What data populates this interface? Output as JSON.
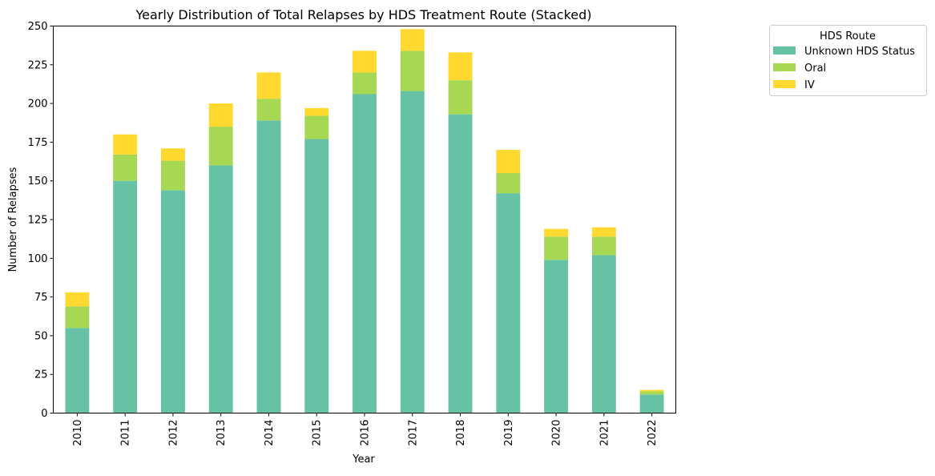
{
  "chart_data": {
    "type": "bar",
    "stacked": true,
    "title": "Yearly Distribution of Total Relapses by HDS Treatment Route (Stacked)",
    "xlabel": "Year",
    "ylabel": "Number of Relapses",
    "ylim": [
      0,
      250
    ],
    "yticks": [
      0,
      25,
      50,
      75,
      100,
      125,
      150,
      175,
      200,
      225,
      250
    ],
    "categories": [
      "2010",
      "2011",
      "2012",
      "2013",
      "2014",
      "2015",
      "2016",
      "2017",
      "2018",
      "2019",
      "2020",
      "2021",
      "2022"
    ],
    "series": [
      {
        "name": "Unknown HDS Status",
        "color": "#66c2a5",
        "values": [
          55,
          150,
          144,
          160,
          189,
          177,
          206,
          208,
          193,
          142,
          99,
          102,
          12
        ]
      },
      {
        "name": "Oral",
        "color": "#a6d854",
        "values": [
          14,
          17,
          19,
          25,
          14,
          15,
          14,
          26,
          22,
          13,
          15,
          12,
          2
        ]
      },
      {
        "name": "IV",
        "color": "#ffd92f",
        "values": [
          9,
          13,
          8,
          15,
          17,
          5,
          14,
          14,
          18,
          15,
          5,
          6,
          1
        ]
      }
    ],
    "legend": {
      "title": "HDS Route",
      "placement": "outside-top-right"
    },
    "grid": false
  }
}
